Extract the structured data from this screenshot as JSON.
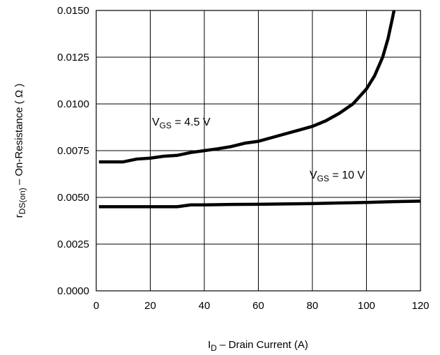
{
  "chart_data": {
    "type": "line",
    "xlabel": {
      "symbol": "I",
      "sub": "D",
      "text": "Drain Current (A)"
    },
    "ylabel": {
      "symbol": "r",
      "sub": "DS(on)",
      "text": "On-Resistance ( Ω )"
    },
    "xlim": [
      0,
      120
    ],
    "ylim": [
      0.0,
      0.015
    ],
    "x_ticks": [
      "0",
      "20",
      "40",
      "60",
      "80",
      "100",
      "120"
    ],
    "y_ticks": [
      "0.0000",
      "0.0025",
      "0.0050",
      "0.0075",
      "0.0100",
      "0.0125",
      "0.0150"
    ],
    "grid": true,
    "series": [
      {
        "label": {
          "symbol": "V",
          "sub": "GS",
          "text": "= 4.5 V"
        },
        "points": [
          [
            1,
            0.0069
          ],
          [
            5,
            0.0069
          ],
          [
            10,
            0.0069
          ],
          [
            15,
            0.00705
          ],
          [
            20,
            0.0071
          ],
          [
            25,
            0.0072
          ],
          [
            30,
            0.00725
          ],
          [
            35,
            0.0074
          ],
          [
            40,
            0.0075
          ],
          [
            45,
            0.0076
          ],
          [
            50,
            0.00772
          ],
          [
            55,
            0.0079
          ],
          [
            60,
            0.008
          ],
          [
            65,
            0.0082
          ],
          [
            70,
            0.0084
          ],
          [
            75,
            0.0086
          ],
          [
            80,
            0.0088
          ],
          [
            85,
            0.0091
          ],
          [
            90,
            0.0095
          ],
          [
            95,
            0.01
          ],
          [
            100,
            0.0108
          ],
          [
            103,
            0.0115
          ],
          [
            106,
            0.0125
          ],
          [
            108,
            0.0135
          ],
          [
            109.5,
            0.0145
          ],
          [
            110.5,
            0.0152
          ]
        ]
      },
      {
        "label": {
          "symbol": "V",
          "sub": "GS",
          "text": "= 10 V"
        },
        "points": [
          [
            1,
            0.0045
          ],
          [
            10,
            0.0045
          ],
          [
            20,
            0.0045
          ],
          [
            30,
            0.0045
          ],
          [
            35,
            0.0046
          ],
          [
            40,
            0.0046
          ],
          [
            50,
            0.00462
          ],
          [
            60,
            0.00463
          ],
          [
            70,
            0.00465
          ],
          [
            80,
            0.00467
          ],
          [
            90,
            0.0047
          ],
          [
            100,
            0.00473
          ],
          [
            110,
            0.00477
          ],
          [
            120,
            0.0048
          ]
        ]
      }
    ]
  }
}
